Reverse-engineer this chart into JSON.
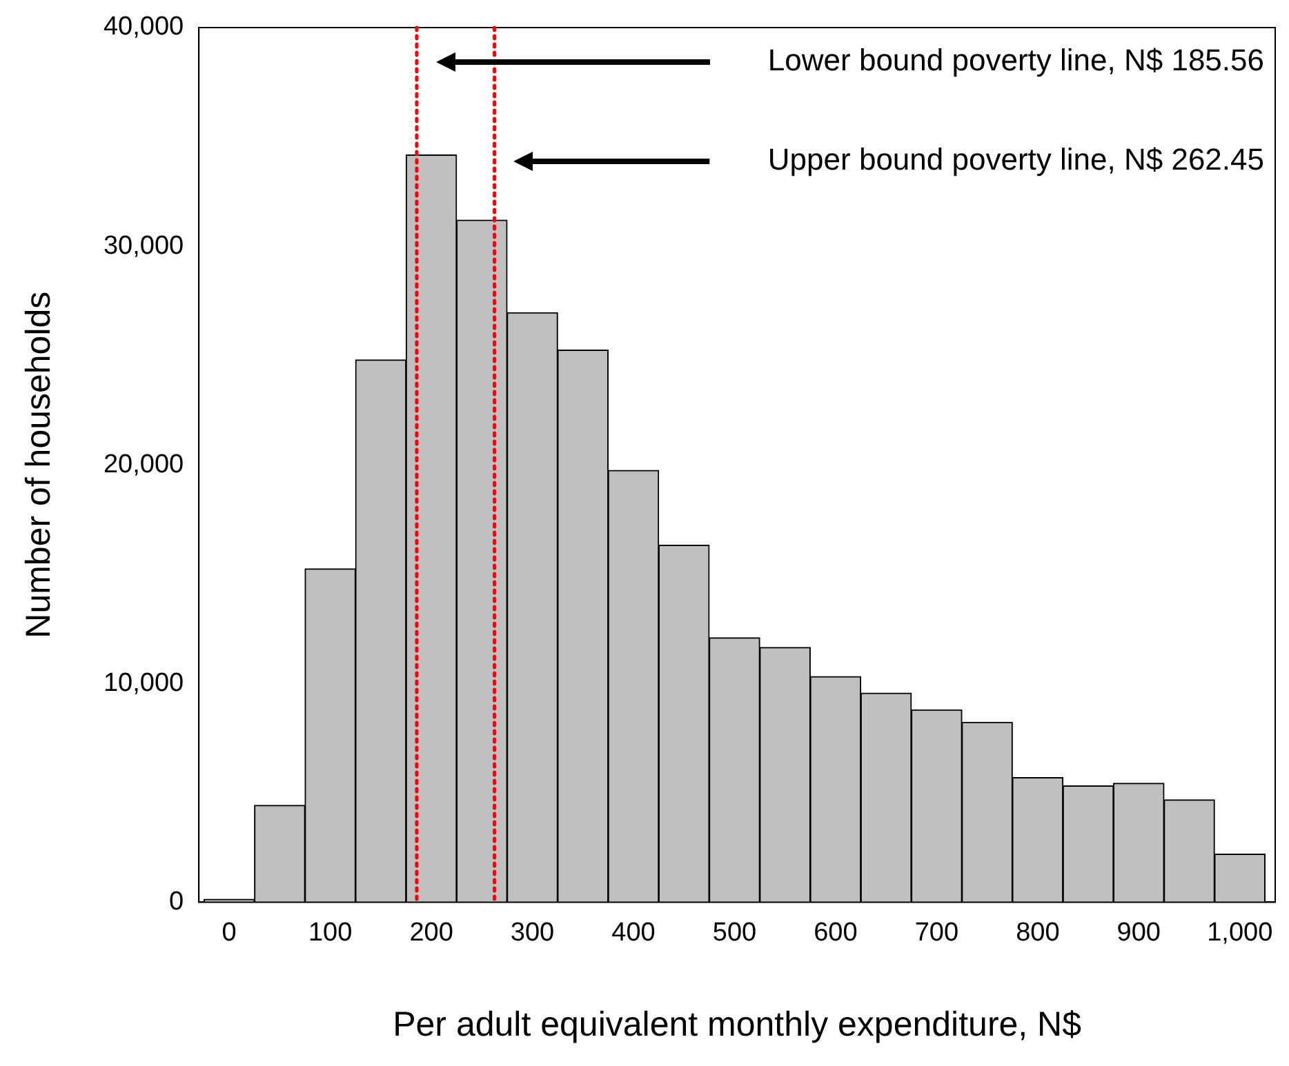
{
  "chart_data": {
    "type": "histogram",
    "xlabel": "Per adult equivalent monthly expenditure, N$",
    "ylabel": "Number of households",
    "bins": [
      -25,
      25,
      75,
      125,
      175,
      225,
      275,
      325,
      375,
      425,
      475,
      525,
      575,
      625,
      675,
      725,
      775,
      825,
      875,
      925,
      975,
      1025
    ],
    "values": [
      130,
      4430,
      15250,
      24800,
      34180,
      31200,
      26960,
      25250,
      19750,
      16330,
      12090,
      11650,
      10320,
      9560,
      8800,
      8230,
      5700,
      5320,
      5440,
      4680,
      2200
    ],
    "color": "#c0c0c0",
    "xlim": [
      -30,
      1035
    ],
    "xticks": [
      0,
      100,
      200,
      300,
      400,
      500,
      600,
      700,
      800,
      900,
      {
        "value": 1000,
        "label": "1,000"
      }
    ],
    "ylim": [
      0,
      40000
    ],
    "yticks": [
      0,
      {
        "value": 10000,
        "label": "10,000"
      },
      {
        "value": 20000,
        "label": "20,000"
      },
      {
        "value": 30000,
        "label": "30,000"
      },
      {
        "value": 40000,
        "label": "40,000"
      }
    ],
    "grid": false,
    "legend": false,
    "ref_lines": [
      {
        "axis": "x",
        "value": 185.56,
        "color": "#ff0000",
        "line_style": "dotted"
      },
      {
        "axis": "x",
        "value": 262.45,
        "color": "#ff0000",
        "line_style": "dotted"
      }
    ],
    "annotations": [
      "Lower bound poverty line, N$ 185.56",
      "Upper bound poverty line, N$ 262.45"
    ]
  }
}
